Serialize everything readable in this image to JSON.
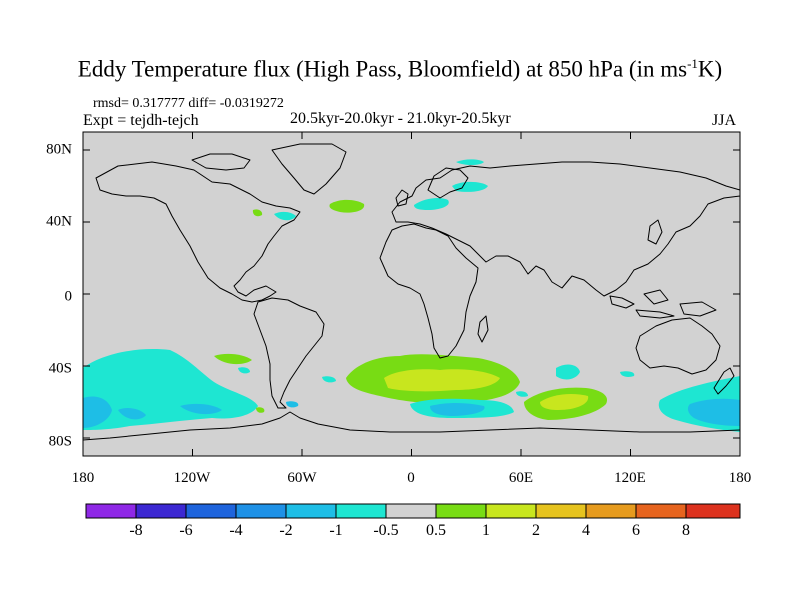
{
  "header": {
    "title_main": "Eddy Temperature flux (High Pass, Bloomfield) at 850 hPa (in ms",
    "title_sup": "-1",
    "title_tail": "K)",
    "stats": "rmsd= 0.317777  diff= -0.0319272",
    "experiment": "Expt = tejdh-tejch",
    "period": "20.5kyr-20.0kyr - 21.0kyr-20.5kyr",
    "season": "JJA"
  },
  "axes": {
    "lat_labels": [
      "80N",
      "40N",
      "0",
      "40S",
      "80S"
    ],
    "lon_labels": [
      "180",
      "120W",
      "60W",
      "0",
      "60E",
      "120E",
      "180"
    ]
  },
  "colorbar": {
    "labels": [
      "-8",
      "-6",
      "-4",
      "-2",
      "-1",
      "-0.5",
      "0.5",
      "1",
      "2",
      "4",
      "6",
      "8"
    ],
    "colors": [
      "#8f28e6",
      "#3c28d2",
      "#1e64dc",
      "#1e91e6",
      "#1ebee6",
      "#1ee6d2",
      "#d2d2d2",
      "#78dc14",
      "#c8e61e",
      "#e6c31e",
      "#e69b1e",
      "#e6641e",
      "#dc321e"
    ]
  },
  "map": {
    "background": "#d2d2d2",
    "coast_color": "#000000"
  }
}
